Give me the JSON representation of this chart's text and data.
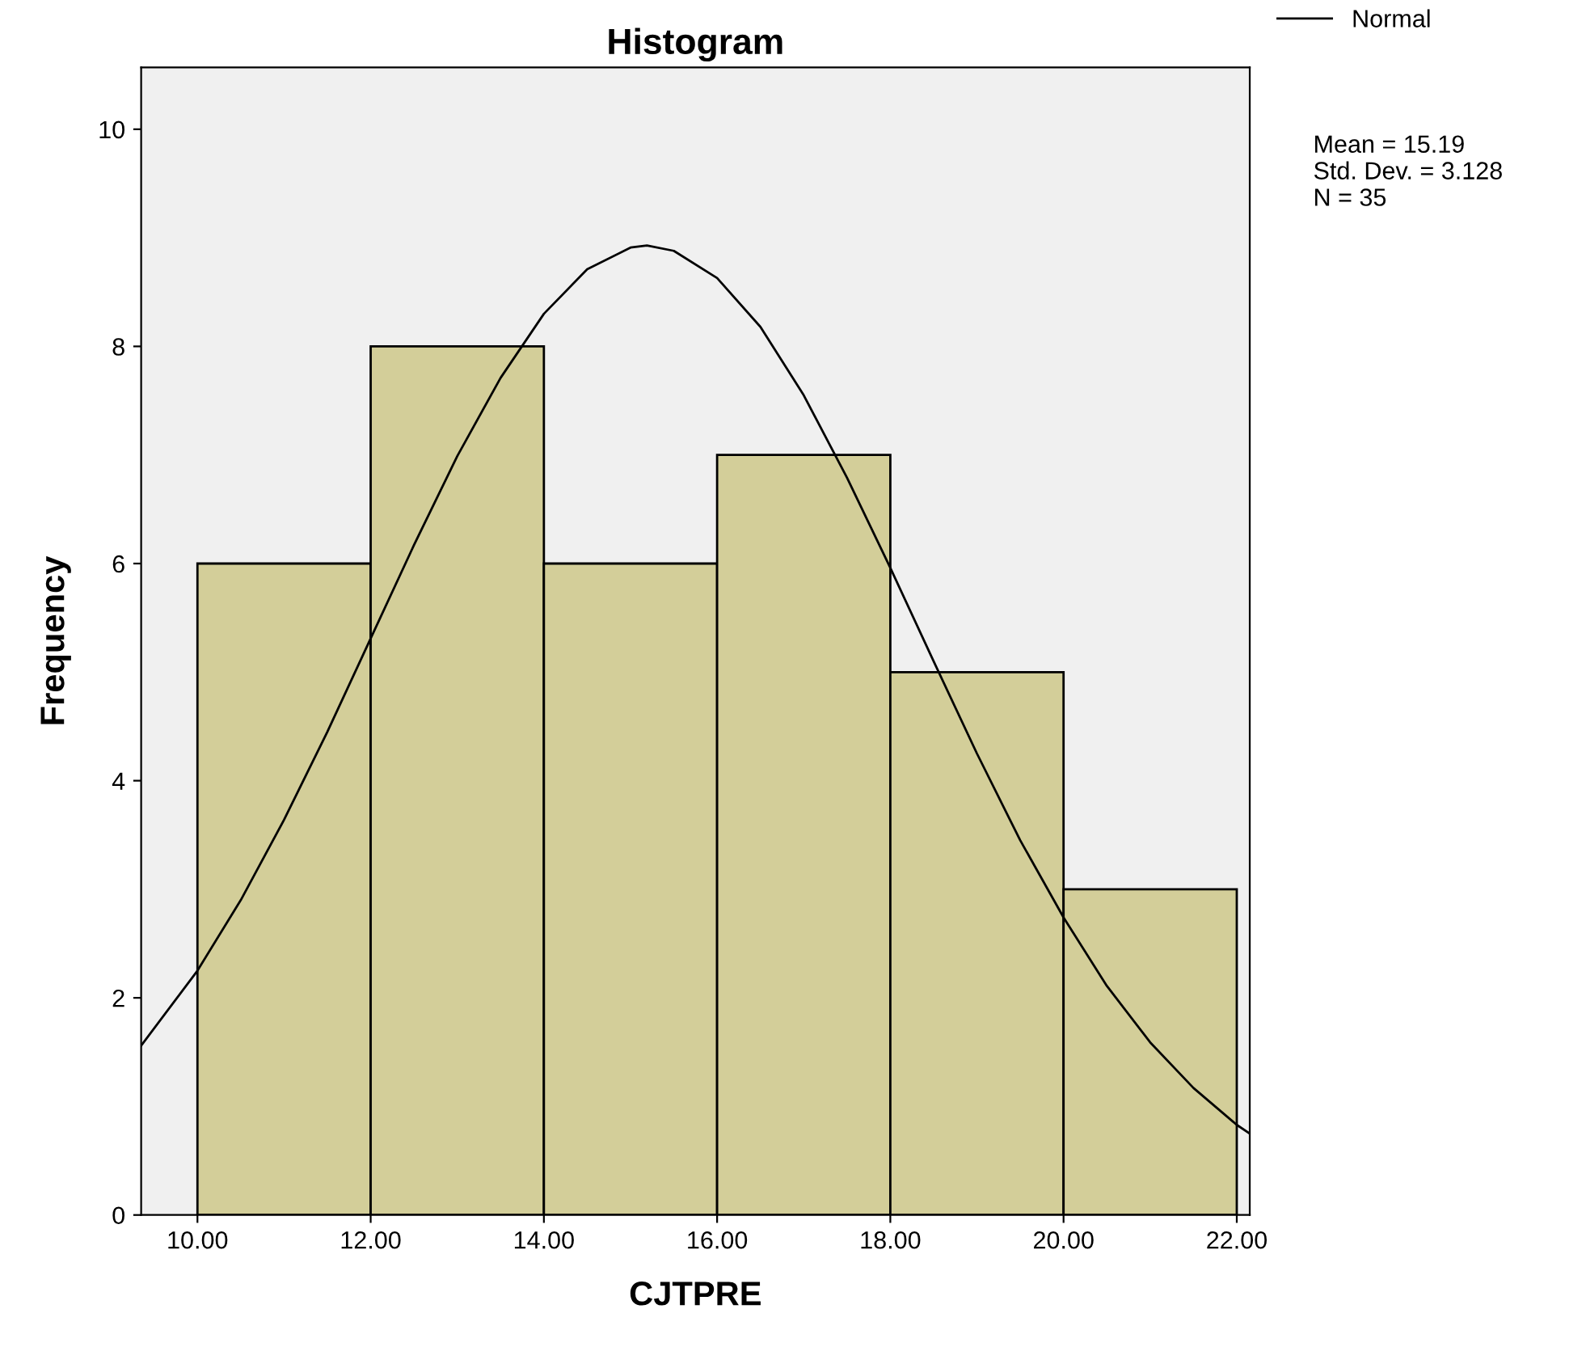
{
  "chart_data": {
    "type": "histogram",
    "title": "Histogram",
    "xlabel": "CJTPRE",
    "ylabel": "Frequency",
    "bins": [
      10,
      12,
      14,
      16,
      18,
      20,
      22
    ],
    "values": [
      6,
      8,
      6,
      7,
      5,
      3
    ],
    "color": "#d3ce99",
    "series": [
      {
        "name": "Normal",
        "type": "line",
        "color": "#000000",
        "x": [
          9.35,
          10,
          10.5,
          11,
          11.5,
          12,
          12.5,
          13,
          13.5,
          14,
          14.5,
          15,
          15.19,
          15.5,
          16,
          16.5,
          17,
          17.5,
          18,
          18.5,
          19,
          19.5,
          20,
          20.5,
          21,
          21.5,
          22,
          22.15
        ],
        "values": [
          1.56,
          2.25,
          2.9,
          3.64,
          4.45,
          5.31,
          6.17,
          6.99,
          7.71,
          8.3,
          8.71,
          8.91,
          8.93,
          8.88,
          8.63,
          8.18,
          7.55,
          6.79,
          5.96,
          5.1,
          4.25,
          3.45,
          2.74,
          2.11,
          1.59,
          1.17,
          0.83,
          0.75
        ]
      }
    ],
    "xlim": [
      9.35,
      22.15
    ],
    "xticks": [
      {
        "value": 10,
        "label": "10.00"
      },
      {
        "value": 12,
        "label": "12.00"
      },
      {
        "value": 14,
        "label": "14.00"
      },
      {
        "value": 16,
        "label": "16.00"
      },
      {
        "value": 18,
        "label": "18.00"
      },
      {
        "value": 20,
        "label": "20.00"
      },
      {
        "value": 22,
        "label": "22.00"
      }
    ],
    "ylim": [
      0,
      10.57
    ],
    "yticks": [
      0,
      2,
      4,
      6,
      8,
      10
    ],
    "legend": "top right",
    "annotations": [
      "Mean = 15.19\nStd. Dev. = 3.128\nN = 35"
    ]
  }
}
